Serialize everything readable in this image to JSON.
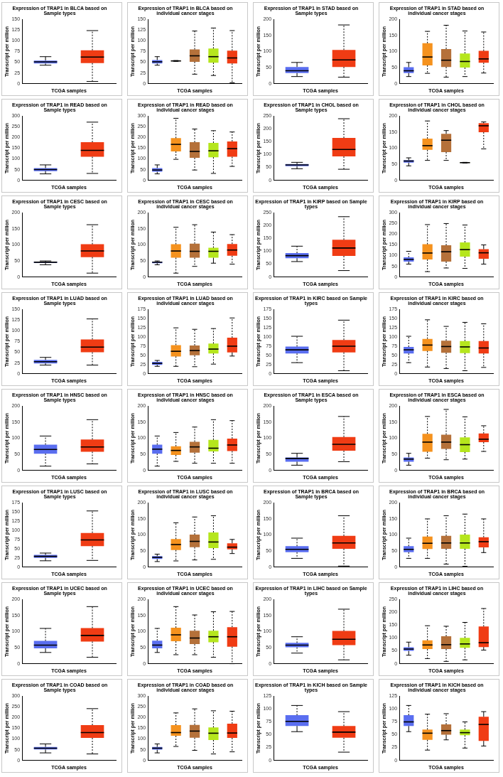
{
  "chart_data": [
    {
      "type": "box",
      "title": "Expression of TRAP1 in BLCA based on Sample types",
      "xlabel": "TCGA samples",
      "ylabel": "Transcript per million",
      "categories": [
        null,
        null
      ],
      "colors": [
        "#5a6ef0",
        "#f03c14"
      ],
      "ylim": [
        0,
        150
      ],
      "yticks": [
        0,
        25,
        50,
        75,
        100,
        125,
        150
      ],
      "boxes": [
        {
          "low": 43,
          "q1": 47,
          "median": 51,
          "q3": 54,
          "high": 63
        },
        {
          "low": 5,
          "q1": 48,
          "median": 62,
          "q3": 78,
          "high": 124
        }
      ]
    },
    {
      "type": "box",
      "title": "Expression of TRAP1 in BLCA based on individual cancer stages",
      "xlabel": "TCGA samples",
      "ylabel": "Transcript per million",
      "categories": [
        null,
        null,
        null,
        null,
        null
      ],
      "colors": [
        "#5a6ef0",
        "#f5921e",
        "#b5713a",
        "#b5e61d",
        "#f03c14"
      ],
      "ylim": [
        0,
        150
      ],
      "yticks": [
        0,
        25,
        50,
        75,
        100,
        125,
        150
      ],
      "boxes": [
        {
          "low": 43,
          "q1": 47,
          "median": 51,
          "q3": 55,
          "high": 63
        },
        {
          "low": 52,
          "q1": 52.5,
          "median": 53,
          "q3": 53.5,
          "high": 54
        },
        {
          "low": 22,
          "q1": 51,
          "median": 65,
          "q3": 80,
          "high": 123
        },
        {
          "low": 19,
          "q1": 49,
          "median": 63,
          "q3": 82,
          "high": 130
        },
        {
          "low": 2,
          "q1": 47,
          "median": 60,
          "q3": 77,
          "high": 124
        }
      ]
    },
    {
      "type": "box",
      "title": "Expression of TRAP1 in STAD based on Sample types",
      "xlabel": "TCGA samples",
      "ylabel": "Transcript per million",
      "categories": [
        null,
        null
      ],
      "colors": [
        "#5a6ef0",
        "#f03c14"
      ],
      "ylim": [
        0,
        200
      ],
      "yticks": [
        0,
        50,
        100,
        150,
        200
      ],
      "boxes": [
        {
          "low": 22,
          "q1": 33,
          "median": 40,
          "q3": 52,
          "high": 66
        },
        {
          "low": 20,
          "q1": 52,
          "median": 74,
          "q3": 105,
          "high": 183
        }
      ]
    },
    {
      "type": "box",
      "title": "Expression of TRAP1 in STAD based on individual cancer stages",
      "xlabel": "TCGA samples",
      "ylabel": "Transcript per million",
      "categories": [
        null,
        null,
        null,
        null,
        null
      ],
      "colors": [
        "#5a6ef0",
        "#f5921e",
        "#b5713a",
        "#b5e61d",
        "#f03c14"
      ],
      "ylim": [
        0,
        200
      ],
      "yticks": [
        0,
        50,
        100,
        150,
        200
      ],
      "boxes": [
        {
          "low": 22,
          "q1": 33,
          "median": 40,
          "q3": 51,
          "high": 66
        },
        {
          "low": 32,
          "q1": 57,
          "median": 83,
          "q3": 126,
          "high": 163
        },
        {
          "low": 20,
          "q1": 52,
          "median": 73,
          "q3": 108,
          "high": 182
        },
        {
          "low": 22,
          "q1": 50,
          "median": 69,
          "q3": 94,
          "high": 164
        },
        {
          "low": 33,
          "q1": 65,
          "median": 77,
          "q3": 102,
          "high": 161
        }
      ]
    },
    {
      "type": "box",
      "title": "Expression of TRAP1 in READ based on Sample types",
      "xlabel": "TCGA samples",
      "ylabel": "Transcript per million",
      "categories": [
        null,
        null
      ],
      "colors": [
        "#5a6ef0",
        "#f03c14"
      ],
      "ylim": [
        0,
        300
      ],
      "yticks": [
        0,
        50,
        100,
        150,
        200,
        250,
        300
      ],
      "boxes": [
        {
          "low": 30,
          "q1": 43,
          "median": 50,
          "q3": 57,
          "high": 72
        },
        {
          "low": 32,
          "q1": 110,
          "median": 140,
          "q3": 178,
          "high": 272
        }
      ]
    },
    {
      "type": "box",
      "title": "Expression of TRAP1 in READ based on individual cancer stages",
      "xlabel": "TCGA samples",
      "ylabel": "Transcript per million",
      "categories": [
        null,
        null,
        null,
        null,
        null
      ],
      "colors": [
        "#5a6ef0",
        "#f5921e",
        "#b5713a",
        "#b5e61d",
        "#f03c14"
      ],
      "ylim": [
        0,
        300
      ],
      "yticks": [
        0,
        50,
        100,
        150,
        200,
        250,
        300
      ],
      "boxes": [
        {
          "low": 30,
          "q1": 40,
          "median": 48,
          "q3": 57,
          "high": 72
        },
        {
          "low": 98,
          "q1": 135,
          "median": 168,
          "q3": 197,
          "high": 290
        },
        {
          "low": 48,
          "q1": 105,
          "median": 135,
          "q3": 178,
          "high": 240
        },
        {
          "low": 32,
          "q1": 108,
          "median": 138,
          "q3": 175,
          "high": 232
        },
        {
          "low": 65,
          "q1": 110,
          "median": 148,
          "q3": 182,
          "high": 226
        }
      ]
    },
    {
      "type": "box",
      "title": "Expression of TRAP1 in CHOL based on Sample types",
      "xlabel": "TCGA samples",
      "ylabel": "Transcript per million",
      "categories": [
        null,
        null
      ],
      "colors": [
        "#5a6ef0",
        "#f03c14"
      ],
      "ylim": [
        0,
        250
      ],
      "yticks": [
        0,
        50,
        100,
        150,
        200,
        250
      ],
      "boxes": [
        {
          "low": 45,
          "q1": 55,
          "median": 60,
          "q3": 63,
          "high": 70
        },
        {
          "low": 43,
          "q1": 93,
          "median": 120,
          "q3": 165,
          "high": 240
        }
      ]
    },
    {
      "type": "box",
      "title": "Expression of TRAP1 in CHOL based on individual cancer stages",
      "xlabel": "TCGA samples",
      "ylabel": "Transcript per million",
      "categories": [
        null,
        null,
        null,
        null,
        null
      ],
      "colors": [
        "#5a6ef0",
        "#f5921e",
        "#b5713a",
        "#b5e61d",
        "#f03c14"
      ],
      "ylim": [
        0,
        200
      ],
      "yticks": [
        0,
        50,
        100,
        150,
        200
      ],
      "boxes": [
        {
          "low": 45,
          "q1": 55,
          "median": 60,
          "q3": 63,
          "high": 70
        },
        {
          "low": 62,
          "q1": 95,
          "median": 108,
          "q3": 130,
          "high": 185
        },
        {
          "low": 62,
          "q1": 88,
          "median": 125,
          "q3": 145,
          "high": 155
        },
        {
          "low": 54,
          "q1": 54.5,
          "median": 55,
          "q3": 55.5,
          "high": 56
        },
        {
          "low": 98,
          "q1": 150,
          "median": 170,
          "q3": 178,
          "high": 182
        }
      ]
    },
    {
      "type": "box",
      "title": "Expression of TRAP1 in CESC based on Sample types",
      "xlabel": "TCGA samples",
      "ylabel": "Transcript per million",
      "categories": [
        null,
        null
      ],
      "colors": [
        "#5a6ef0",
        "#f03c14"
      ],
      "ylim": [
        0,
        200
      ],
      "yticks": [
        0,
        50,
        100,
        150,
        200
      ],
      "boxes": [
        {
          "low": 38,
          "q1": 44,
          "median": 46,
          "q3": 48,
          "high": 50
        },
        {
          "low": 12,
          "q1": 62,
          "median": 81,
          "q3": 102,
          "high": 163
        }
      ]
    },
    {
      "type": "box",
      "title": "Expression of TRAP1 in CESC based on individual cancer stages",
      "xlabel": "TCGA samples",
      "ylabel": "Transcript per million",
      "categories": [
        null,
        null,
        null,
        null,
        null
      ],
      "colors": [
        "#5a6ef0",
        "#f5921e",
        "#b5713a",
        "#b5e61d",
        "#f03c14"
      ],
      "ylim": [
        0,
        200
      ],
      "yticks": [
        0,
        50,
        100,
        150,
        200
      ],
      "boxes": [
        {
          "low": 38,
          "q1": 43,
          "median": 46,
          "q3": 48,
          "high": 50
        },
        {
          "low": 12,
          "q1": 60,
          "median": 81,
          "q3": 102,
          "high": 155
        },
        {
          "low": 33,
          "q1": 60,
          "median": 80,
          "q3": 104,
          "high": 163
        },
        {
          "low": 43,
          "q1": 60,
          "median": 80,
          "q3": 91,
          "high": 140
        },
        {
          "low": 40,
          "q1": 66,
          "median": 84,
          "q3": 103,
          "high": 132
        }
      ]
    },
    {
      "type": "box",
      "title": "Expression of TRAP1 in KIRP based on Sample types",
      "xlabel": "TCGA samples",
      "ylabel": "Transcript per million",
      "categories": [
        null,
        null
      ],
      "colors": [
        "#5a6ef0",
        "#f03c14"
      ],
      "ylim": [
        0,
        250
      ],
      "yticks": [
        0,
        50,
        100,
        150,
        200,
        250
      ],
      "boxes": [
        {
          "low": 60,
          "q1": 73,
          "median": 83,
          "q3": 93,
          "high": 120
        },
        {
          "low": 25,
          "q1": 82,
          "median": 113,
          "q3": 145,
          "high": 235
        }
      ]
    },
    {
      "type": "box",
      "title": "Expression of TRAP1 in KIRP based on individual cancer stages",
      "xlabel": "TCGA samples",
      "ylabel": "Transcript per million",
      "categories": [
        null,
        null,
        null,
        null,
        null
      ],
      "colors": [
        "#5a6ef0",
        "#f5921e",
        "#b5713a",
        "#b5e61d",
        "#f03c14"
      ],
      "ylim": [
        0,
        300
      ],
      "yticks": [
        0,
        50,
        100,
        150,
        200,
        250,
        300
      ],
      "boxes": [
        {
          "low": 60,
          "q1": 72,
          "median": 82,
          "q3": 92,
          "high": 120
        },
        {
          "low": 25,
          "q1": 82,
          "median": 112,
          "q3": 153,
          "high": 245
        },
        {
          "low": 42,
          "q1": 72,
          "median": 118,
          "q3": 148,
          "high": 250
        },
        {
          "low": 40,
          "q1": 95,
          "median": 128,
          "q3": 162,
          "high": 243
        },
        {
          "low": 60,
          "q1": 85,
          "median": 113,
          "q3": 130,
          "high": 150
        }
      ]
    },
    {
      "type": "box",
      "title": "Expression of TRAP1 in LUAD based on Sample types",
      "xlabel": "TCGA samples",
      "ylabel": "Transcript per million",
      "categories": [
        null,
        null
      ],
      "colors": [
        "#5a6ef0",
        "#f03c14"
      ],
      "ylim": [
        0,
        150
      ],
      "yticks": [
        0,
        25,
        50,
        75,
        100,
        125,
        150
      ],
      "boxes": [
        {
          "low": 20,
          "q1": 24,
          "median": 28,
          "q3": 32,
          "high": 38
        },
        {
          "low": 20,
          "q1": 50,
          "median": 62,
          "q3": 80,
          "high": 128
        }
      ]
    },
    {
      "type": "box",
      "title": "Expression of TRAP1 in LUAD based on individual cancer stages",
      "xlabel": "TCGA samples",
      "ylabel": "Transcript per million",
      "categories": [
        null,
        null,
        null,
        null,
        null
      ],
      "colors": [
        "#5a6ef0",
        "#f5921e",
        "#b5713a",
        "#b5e61d",
        "#f03c14"
      ],
      "ylim": [
        0,
        175
      ],
      "yticks": [
        0,
        25,
        50,
        75,
        100,
        125,
        150,
        175
      ],
      "boxes": [
        {
          "low": 20,
          "q1": 24,
          "median": 28,
          "q3": 32,
          "high": 36
        },
        {
          "low": 20,
          "q1": 47,
          "median": 61,
          "q3": 78,
          "high": 125
        },
        {
          "low": 19,
          "q1": 50,
          "median": 63,
          "q3": 77,
          "high": 121
        },
        {
          "low": 26,
          "q1": 55,
          "median": 67,
          "q3": 82,
          "high": 123
        },
        {
          "low": 48,
          "q1": 58,
          "median": 75,
          "q3": 98,
          "high": 152
        }
      ]
    },
    {
      "type": "box",
      "title": "Expression of TRAP1 in KIRC based on Sample types",
      "xlabel": "TCGA samples",
      "ylabel": "Transcript per million",
      "categories": [
        null,
        null
      ],
      "colors": [
        "#5a6ef0",
        "#f03c14"
      ],
      "ylim": [
        0,
        175
      ],
      "yticks": [
        0,
        25,
        50,
        75,
        100,
        125,
        150,
        175
      ],
      "boxes": [
        {
          "low": 30,
          "q1": 55,
          "median": 65,
          "q3": 74,
          "high": 102
        },
        {
          "low": 8,
          "q1": 58,
          "median": 75,
          "q3": 92,
          "high": 146
        }
      ]
    },
    {
      "type": "box",
      "title": "Expression of TRAP1 in KIRC based on individual cancer stages",
      "xlabel": "TCGA samples",
      "ylabel": "Transcript per million",
      "categories": [
        null,
        null,
        null,
        null,
        null
      ],
      "colors": [
        "#5a6ef0",
        "#f5921e",
        "#b5713a",
        "#b5e61d",
        "#f03c14"
      ],
      "ylim": [
        0,
        175
      ],
      "yticks": [
        0,
        25,
        50,
        75,
        100,
        125,
        150,
        175
      ],
      "boxes": [
        {
          "low": 30,
          "q1": 55,
          "median": 65,
          "q3": 73,
          "high": 102
        },
        {
          "low": 18,
          "q1": 62,
          "median": 78,
          "q3": 95,
          "high": 147
        },
        {
          "low": 14,
          "q1": 57,
          "median": 74,
          "q3": 90,
          "high": 129
        },
        {
          "low": 8,
          "q1": 56,
          "median": 73,
          "q3": 89,
          "high": 140
        },
        {
          "low": 17,
          "q1": 55,
          "median": 70,
          "q3": 89,
          "high": 136
        }
      ]
    },
    {
      "type": "box",
      "title": "Expression of TRAP1 in HNSC based on Sample types",
      "xlabel": "TCGA samples",
      "ylabel": "Transcript per million",
      "categories": [
        null,
        null
      ],
      "colors": [
        "#5a6ef0",
        "#f03c14"
      ],
      "ylim": [
        0,
        200
      ],
      "yticks": [
        0,
        50,
        100,
        150,
        200
      ],
      "boxes": [
        {
          "low": 13,
          "q1": 52,
          "median": 65,
          "q3": 80,
          "high": 107
        },
        {
          "low": 20,
          "q1": 58,
          "median": 73,
          "q3": 96,
          "high": 158
        }
      ]
    },
    {
      "type": "box",
      "title": "Expression of TRAP1 in HNSC based on individual cancer stages",
      "xlabel": "TCGA samples",
      "ylabel": "Transcript per million",
      "categories": [
        null,
        null,
        null,
        null,
        null
      ],
      "colors": [
        "#5a6ef0",
        "#f5921e",
        "#b5713a",
        "#b5e61d",
        "#f03c14"
      ],
      "ylim": [
        0,
        200
      ],
      "yticks": [
        0,
        50,
        100,
        150,
        200
      ],
      "boxes": [
        {
          "low": 13,
          "q1": 52,
          "median": 66,
          "q3": 80,
          "high": 107
        },
        {
          "low": 28,
          "q1": 48,
          "median": 62,
          "q3": 75,
          "high": 118
        },
        {
          "low": 22,
          "q1": 55,
          "median": 73,
          "q3": 89,
          "high": 135
        },
        {
          "low": 22,
          "q1": 59,
          "median": 69,
          "q3": 95,
          "high": 158
        },
        {
          "low": 22,
          "q1": 60,
          "median": 79,
          "q3": 99,
          "high": 155
        }
      ]
    },
    {
      "type": "box",
      "title": "Expression of TRAP1 in ESCA based on Sample types",
      "xlabel": "TCGA samples",
      "ylabel": "Transcript per million",
      "categories": [
        null,
        null
      ],
      "colors": [
        "#5a6ef0",
        "#f03c14"
      ],
      "ylim": [
        0,
        200
      ],
      "yticks": [
        0,
        50,
        100,
        150,
        200
      ],
      "boxes": [
        {
          "low": 16,
          "q1": 27,
          "median": 37,
          "q3": 40,
          "high": 53
        },
        {
          "low": 27,
          "q1": 61,
          "median": 81,
          "q3": 104,
          "high": 168
        }
      ]
    },
    {
      "type": "box",
      "title": "Expression of TRAP1 in ESCA based on individual cancer stages",
      "xlabel": "TCGA samples",
      "ylabel": "Transcript per million",
      "categories": [
        null,
        null,
        null,
        null,
        null
      ],
      "colors": [
        "#5a6ef0",
        "#f5921e",
        "#b5713a",
        "#b5e61d",
        "#f03c14"
      ],
      "ylim": [
        0,
        200
      ],
      "yticks": [
        0,
        50,
        100,
        150,
        200
      ],
      "boxes": [
        {
          "low": 16,
          "q1": 27,
          "median": 35,
          "q3": 40,
          "high": 53
        },
        {
          "low": 38,
          "q1": 58,
          "median": 88,
          "q3": 114,
          "high": 168
        },
        {
          "low": 33,
          "q1": 67,
          "median": 88,
          "q3": 111,
          "high": 190
        },
        {
          "low": 35,
          "q1": 57,
          "median": 80,
          "q3": 103,
          "high": 167
        },
        {
          "low": 59,
          "q1": 88,
          "median": 97,
          "q3": 115,
          "high": 139
        }
      ]
    },
    {
      "type": "box",
      "title": "Expression of TRAP1 in LUSC based on Sample types",
      "xlabel": "TCGA samples",
      "ylabel": "Transcript per million",
      "categories": [
        null,
        null
      ],
      "colors": [
        "#5a6ef0",
        "#f03c14"
      ],
      "ylim": [
        0,
        175
      ],
      "yticks": [
        0,
        25,
        50,
        75,
        100,
        125,
        150,
        175
      ],
      "boxes": [
        {
          "low": 17,
          "q1": 25,
          "median": 29,
          "q3": 33,
          "high": 38
        },
        {
          "low": 18,
          "q1": 57,
          "median": 74,
          "q3": 93,
          "high": 153
        }
      ]
    },
    {
      "type": "box",
      "title": "Expression of TRAP1 in LUSC based on individual cancer stages",
      "xlabel": "TCGA samples",
      "ylabel": "Transcript per million",
      "categories": [
        null,
        null,
        null,
        null,
        null
      ],
      "colors": [
        "#5a6ef0",
        "#f5921e",
        "#b5713a",
        "#b5e61d",
        "#f03c14"
      ],
      "ylim": [
        0,
        200
      ],
      "yticks": [
        0,
        50,
        100,
        150,
        200
      ],
      "boxes": [
        {
          "low": 17,
          "q1": 25,
          "median": 30,
          "q3": 34,
          "high": 40
        },
        {
          "low": 19,
          "q1": 53,
          "median": 70,
          "q3": 87,
          "high": 138
        },
        {
          "low": 22,
          "q1": 62,
          "median": 80,
          "q3": 101,
          "high": 156
        },
        {
          "low": 24,
          "q1": 59,
          "median": 78,
          "q3": 108,
          "high": 160
        },
        {
          "low": 42,
          "q1": 55,
          "median": 62,
          "q3": 74,
          "high": 86
        }
      ]
    },
    {
      "type": "box",
      "title": "Expression of TRAP1 in BRCA based on Sample types",
      "xlabel": "TCGA samples",
      "ylabel": "Transcript per million",
      "categories": [
        null,
        null
      ],
      "colors": [
        "#5a6ef0",
        "#f03c14"
      ],
      "ylim": [
        0,
        200
      ],
      "yticks": [
        0,
        50,
        100,
        150,
        200
      ],
      "boxes": [
        {
          "low": 27,
          "q1": 46,
          "median": 55,
          "q3": 65,
          "high": 90
        },
        {
          "low": 3,
          "q1": 57,
          "median": 75,
          "q3": 97,
          "high": 160
        }
      ]
    },
    {
      "type": "box",
      "title": "Expression of TRAP1 in BRCA based on individual cancer stages",
      "xlabel": "TCGA samples",
      "ylabel": "Transcript per million",
      "categories": [
        null,
        null,
        null,
        null,
        null
      ],
      "colors": [
        "#5a6ef0",
        "#f5921e",
        "#b5713a",
        "#b5e61d",
        "#f03c14"
      ],
      "ylim": [
        0,
        200
      ],
      "yticks": [
        0,
        50,
        100,
        150,
        200
      ],
      "boxes": [
        {
          "low": 27,
          "q1": 46,
          "median": 55,
          "q3": 65,
          "high": 90
        },
        {
          "low": 27,
          "q1": 56,
          "median": 74,
          "q3": 95,
          "high": 150
        },
        {
          "low": 9,
          "q1": 57,
          "median": 75,
          "q3": 97,
          "high": 160
        },
        {
          "low": 2,
          "q1": 57,
          "median": 75,
          "q3": 101,
          "high": 165
        },
        {
          "low": 45,
          "q1": 61,
          "median": 79,
          "q3": 93,
          "high": 150
        }
      ]
    },
    {
      "type": "box",
      "title": "Expression of TRAP1 in UCEC based on Sample types",
      "xlabel": "TCGA samples",
      "ylabel": "Transcript per million",
      "categories": [
        null,
        null
      ],
      "colors": [
        "#5a6ef0",
        "#f03c14"
      ],
      "ylim": [
        0,
        200
      ],
      "yticks": [
        0,
        50,
        100,
        150,
        200
      ],
      "boxes": [
        {
          "low": 35,
          "q1": 48,
          "median": 58,
          "q3": 71,
          "high": 110
        },
        {
          "low": 20,
          "q1": 69,
          "median": 88,
          "q3": 111,
          "high": 178
        }
      ]
    },
    {
      "type": "box",
      "title": "Expression of TRAP1 in UCEC based on individual cancer stages",
      "xlabel": "TCGA samples",
      "ylabel": "Transcript per million",
      "categories": [
        null,
        null,
        null,
        null,
        null
      ],
      "colors": [
        "#5a6ef0",
        "#f5921e",
        "#b5713a",
        "#b5e61d",
        "#f03c14"
      ],
      "ylim": [
        0,
        200
      ],
      "yticks": [
        0,
        50,
        100,
        150,
        200
      ],
      "boxes": [
        {
          "low": 35,
          "q1": 48,
          "median": 58,
          "q3": 72,
          "high": 110
        },
        {
          "low": 28,
          "q1": 70,
          "median": 90,
          "q3": 112,
          "high": 178
        },
        {
          "low": 28,
          "q1": 61,
          "median": 80,
          "q3": 103,
          "high": 152
        },
        {
          "low": 20,
          "q1": 67,
          "median": 84,
          "q3": 103,
          "high": 162
        },
        {
          "low": 0,
          "q1": 53,
          "median": 84,
          "q3": 114,
          "high": 163
        }
      ]
    },
    {
      "type": "box",
      "title": "Expression of TRAP1 in LIHC based on Sample types",
      "xlabel": "TCGA samples",
      "ylabel": "Transcript per million",
      "categories": [
        null,
        null
      ],
      "colors": [
        "#5a6ef0",
        "#f03c14"
      ],
      "ylim": [
        0,
        200
      ],
      "yticks": [
        0,
        50,
        100,
        150,
        200
      ],
      "boxes": [
        {
          "low": 33,
          "q1": 51,
          "median": 58,
          "q3": 65,
          "high": 84
        },
        {
          "low": 12,
          "q1": 58,
          "median": 76,
          "q3": 102,
          "high": 170
        }
      ]
    },
    {
      "type": "box",
      "title": "Expression of TRAP1 in LIHC based on individual cancer stages",
      "xlabel": "TCGA samples",
      "ylabel": "Transcript per million",
      "categories": [
        null,
        null,
        null,
        null,
        null
      ],
      "colors": [
        "#5a6ef0",
        "#f5921e",
        "#b5713a",
        "#b5e61d",
        "#f03c14"
      ],
      "ylim": [
        0,
        250
      ],
      "yticks": [
        0,
        50,
        100,
        150,
        200,
        250
      ],
      "boxes": [
        {
          "low": 33,
          "q1": 50,
          "median": 57,
          "q3": 64,
          "high": 84
        },
        {
          "low": 20,
          "q1": 57,
          "median": 73,
          "q3": 91,
          "high": 148
        },
        {
          "low": 9,
          "q1": 57,
          "median": 74,
          "q3": 107,
          "high": 146
        },
        {
          "low": 15,
          "q1": 62,
          "median": 77,
          "q3": 101,
          "high": 161
        },
        {
          "low": 53,
          "q1": 65,
          "median": 82,
          "q3": 145,
          "high": 215
        }
      ]
    },
    {
      "type": "box",
      "title": "Expression of TRAP1 in COAD based on Sample types",
      "xlabel": "TCGA samples",
      "ylabel": "Transcript per million",
      "categories": [
        null,
        null
      ],
      "colors": [
        "#5a6ef0",
        "#f03c14"
      ],
      "ylim": [
        0,
        300
      ],
      "yticks": [
        0,
        50,
        100,
        150,
        200,
        250,
        300
      ],
      "boxes": [
        {
          "low": 35,
          "q1": 51,
          "median": 57,
          "q3": 63,
          "high": 77
        },
        {
          "low": 30,
          "q1": 105,
          "median": 130,
          "q3": 165,
          "high": 242
        }
      ]
    },
    {
      "type": "box",
      "title": "Expression of TRAP1 in COAD based on individual cancer stages",
      "xlabel": "TCGA samples",
      "ylabel": "Transcript per million",
      "categories": [
        null,
        null,
        null,
        null,
        null
      ],
      "colors": [
        "#5a6ef0",
        "#f5921e",
        "#b5713a",
        "#b5e61d",
        "#f03c14"
      ],
      "ylim": [
        0,
        300
      ],
      "yticks": [
        0,
        50,
        100,
        150,
        200,
        250,
        300
      ],
      "boxes": [
        {
          "low": 35,
          "q1": 50,
          "median": 57,
          "q3": 63,
          "high": 77
        },
        {
          "low": 65,
          "q1": 115,
          "median": 130,
          "q3": 165,
          "high": 222
        },
        {
          "low": 47,
          "q1": 106,
          "median": 137,
          "q3": 166,
          "high": 241
        },
        {
          "low": 30,
          "q1": 95,
          "median": 127,
          "q3": 154,
          "high": 232
        },
        {
          "low": 40,
          "q1": 105,
          "median": 128,
          "q3": 172,
          "high": 230
        }
      ]
    },
    {
      "type": "box",
      "title": "Expression of TRAP1 in KICH based on Sample types",
      "xlabel": "TCGA samples",
      "ylabel": "Transcript per million",
      "categories": [
        null,
        null
      ],
      "colors": [
        "#5a6ef0",
        "#f03c14"
      ],
      "ylim": [
        0,
        125
      ],
      "yticks": [
        0,
        25,
        50,
        75,
        100,
        125
      ],
      "boxes": [
        {
          "low": 56,
          "q1": 67,
          "median": 76,
          "q3": 88,
          "high": 107
        },
        {
          "low": 16,
          "q1": 44,
          "median": 55,
          "q3": 67,
          "high": 95
        }
      ]
    },
    {
      "type": "box",
      "title": "Expression of TRAP1 in KICH based on individual cancer stages",
      "xlabel": "TCGA samples",
      "ylabel": "Transcript per million",
      "categories": [
        null,
        null,
        null,
        null,
        null
      ],
      "colors": [
        "#5a6ef0",
        "#f5921e",
        "#b5713a",
        "#b5e61d",
        "#f03c14"
      ],
      "ylim": [
        0,
        125
      ],
      "yticks": [
        0,
        25,
        50,
        75,
        100,
        125
      ],
      "boxes": [
        {
          "low": 56,
          "q1": 67,
          "median": 75,
          "q3": 88,
          "high": 107
        },
        {
          "low": 20,
          "q1": 40,
          "median": 53,
          "q3": 60,
          "high": 90
        },
        {
          "low": 40,
          "q1": 50,
          "median": 58,
          "q3": 70,
          "high": 91
        },
        {
          "low": 24,
          "q1": 49,
          "median": 54,
          "q3": 60,
          "high": 75
        },
        {
          "low": 28,
          "q1": 38,
          "median": 70,
          "q3": 85,
          "high": 95
        }
      ]
    }
  ]
}
